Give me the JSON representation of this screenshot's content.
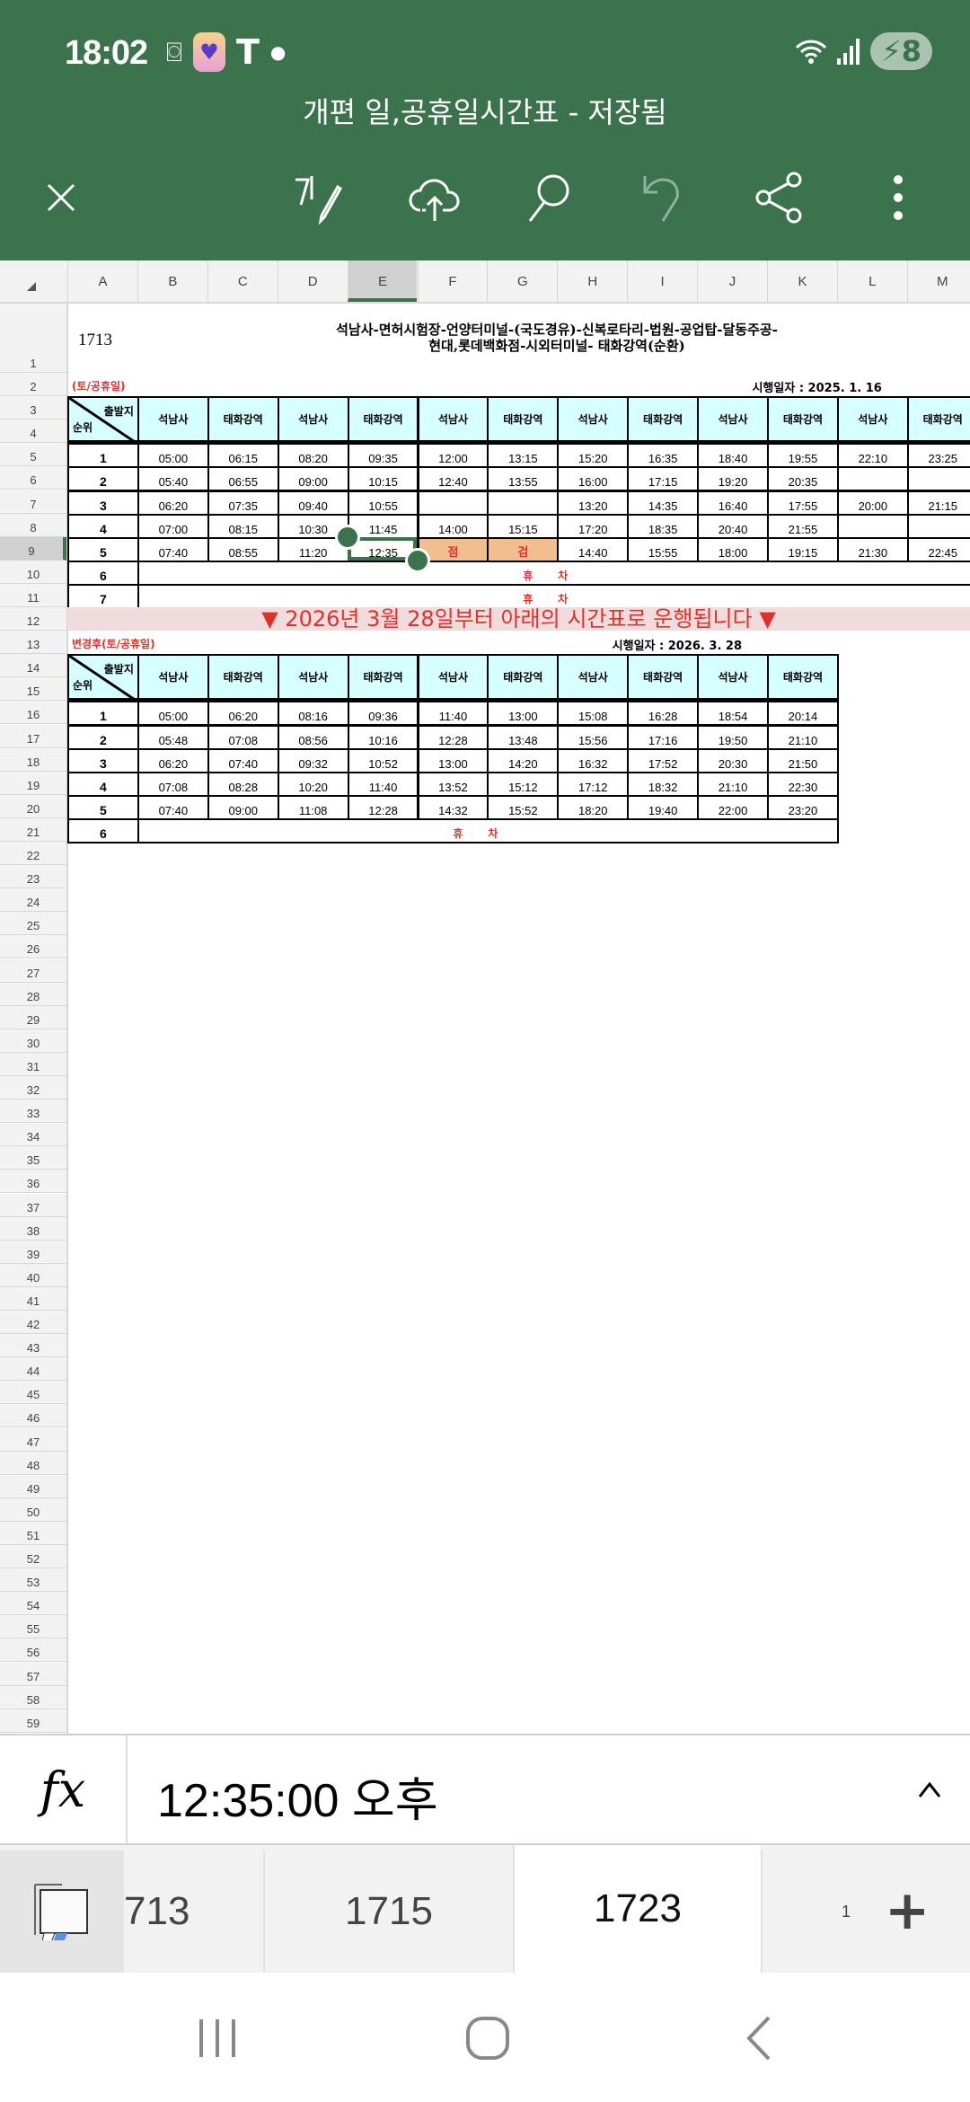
{
  "status_bar": {
    "time": "18:02",
    "battery": "8",
    "icons": [
      "screenshot-icon",
      "app-heart-icon",
      "t-app-icon",
      "dot-icon",
      "wifi-icon",
      "signal-icon",
      "battery-charging-icon"
    ]
  },
  "app": {
    "title": "개편 일,공휴일시간표 - 저장됨",
    "accent": "#3b734d"
  },
  "toolbar": [
    "close-icon",
    "draw-icon",
    "cloud-upload-icon",
    "search-icon",
    "undo-icon",
    "share-icon",
    "more-icon"
  ],
  "columns": [
    "A",
    "B",
    "C",
    "D",
    "E",
    "F",
    "G",
    "H",
    "I",
    "J",
    "K",
    "L",
    "M"
  ],
  "selected_column": "E",
  "selected_row": "9",
  "sheet": {
    "route_no": "1713",
    "route_title_1": "석남사-면허시험장-언양터미널-(국도경유)-신복로타리-법원-공업탑-달동주공-",
    "route_title_2": "현대,롯데백화점-시외터미널- 태화강역(순환)",
    "table1": {
      "label": "(토/공휴일)",
      "date": "시행일자 : 2025. 1. 16",
      "corner_top": "출발지",
      "corner_bottom": "순위",
      "headers": [
        "석남사",
        "태화강역",
        "석남사",
        "태화강역",
        "석남사",
        "태화강역",
        "석남사",
        "태화강역",
        "석남사",
        "태화강역",
        "석남사",
        "태화강역"
      ],
      "rows": [
        [
          "1",
          "05:00",
          "06:15",
          "08:20",
          "09:35",
          "12:00",
          "13:15",
          "15:20",
          "16:35",
          "18:40",
          "19:55",
          "22:10",
          "23:25"
        ],
        [
          "2",
          "05:40",
          "06:55",
          "09:00",
          "10:15",
          "12:40",
          "13:55",
          "16:00",
          "17:15",
          "19:20",
          "20:35",
          "",
          ""
        ],
        [
          "3",
          "06:20",
          "07:35",
          "09:40",
          "10:55",
          "",
          "",
          "13:20",
          "14:35",
          "16:40",
          "17:55",
          "20:00",
          "21:15"
        ],
        [
          "4",
          "07:00",
          "08:15",
          "10:30",
          "11:45",
          "14:00",
          "15:15",
          "17:20",
          "18:35",
          "20:40",
          "21:55",
          "",
          ""
        ],
        [
          "5",
          "07:40",
          "08:55",
          "11:20",
          "12:35",
          "점",
          "검",
          "14:40",
          "15:55",
          "18:00",
          "19:15",
          "21:30",
          "22:45"
        ]
      ],
      "rest_rows": [
        [
          "6",
          "휴차"
        ],
        [
          "7",
          "휴차"
        ]
      ]
    },
    "notice": "▼ 2026년 3월 28일부터 아래의 시간표로 운행됩니다 ▼",
    "table2": {
      "label": "변경후(토/공휴일)",
      "date": "시행일자 : 2026. 3. 28",
      "corner_top": "출발지",
      "corner_bottom": "순위",
      "headers": [
        "석남사",
        "태화강역",
        "석남사",
        "태화강역",
        "석남사",
        "태화강역",
        "석남사",
        "태화강역",
        "석남사",
        "태화강역"
      ],
      "rows": [
        [
          "1",
          "05:00",
          "06:20",
          "08:16",
          "09:36",
          "11:40",
          "13:00",
          "15:08",
          "16:28",
          "18:54",
          "20:14"
        ],
        [
          "2",
          "05:48",
          "07:08",
          "08:56",
          "10:16",
          "12:28",
          "13:48",
          "15:56",
          "17:16",
          "19:50",
          "21:10"
        ],
        [
          "3",
          "06:20",
          "07:40",
          "09:32",
          "10:52",
          "13:00",
          "14:20",
          "16:32",
          "17:52",
          "20:30",
          "21:50"
        ],
        [
          "4",
          "07:08",
          "08:28",
          "10:20",
          "11:40",
          "13:52",
          "15:12",
          "17:12",
          "18:32",
          "21:10",
          "22:30"
        ],
        [
          "5",
          "07:40",
          "09:00",
          "11:08",
          "12:28",
          "14:32",
          "15:52",
          "18:20",
          "19:40",
          "22:00",
          "23:20"
        ]
      ],
      "rest_rows": [
        [
          "6",
          "휴차"
        ]
      ]
    },
    "highlight_color": "#f2bd8f"
  },
  "formula_bar": {
    "value": "12:35:00 오후",
    "fx": "fx",
    "expand_icon": "chevron-up-icon"
  },
  "sheet_tabs": {
    "tabs": [
      "713",
      "1715",
      "1723",
      "1"
    ],
    "active": "1723",
    "add_icon": "plus-icon",
    "sheets_icon": "sheets-list-icon"
  },
  "nav_bar": [
    "recents-icon",
    "home-icon",
    "back-icon"
  ]
}
